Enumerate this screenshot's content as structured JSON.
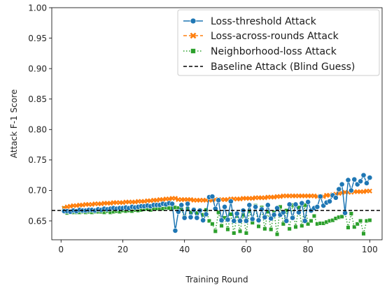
{
  "chart_data": {
    "type": "line",
    "xlabel": "Training Round",
    "ylabel": "Attack F-1 Score",
    "xlim": [
      -3,
      104
    ],
    "ylim": [
      0.619,
      1.0
    ],
    "xticks": [
      0,
      20,
      40,
      60,
      80,
      100
    ],
    "xtick_labels": [
      "0",
      "20",
      "40",
      "60",
      "80",
      "100"
    ],
    "yticks": [
      0.65,
      0.7,
      0.75,
      0.8,
      0.85,
      0.9,
      0.95,
      1.0
    ],
    "ytick_labels": [
      "0.65",
      "0.70",
      "0.75",
      "0.80",
      "0.85",
      "0.90",
      "0.95",
      "1.00"
    ],
    "legend_position": "top-right",
    "grid": false,
    "series": [
      {
        "name": "Loss-threshold Attack",
        "color": "#1f77b4",
        "marker": "circle",
        "line_style": "solid",
        "x": [
          1,
          2,
          3,
          4,
          5,
          6,
          7,
          8,
          9,
          10,
          11,
          12,
          13,
          14,
          15,
          16,
          17,
          18,
          19,
          20,
          21,
          22,
          23,
          24,
          25,
          26,
          27,
          28,
          29,
          30,
          31,
          32,
          33,
          34,
          35,
          36,
          37,
          38,
          39,
          40,
          41,
          42,
          43,
          44,
          45,
          46,
          47,
          48,
          49,
          50,
          51,
          52,
          53,
          54,
          55,
          56,
          57,
          58,
          59,
          60,
          61,
          62,
          63,
          64,
          65,
          66,
          67,
          68,
          69,
          70,
          71,
          72,
          73,
          74,
          75,
          76,
          77,
          78,
          79,
          80,
          81,
          82,
          83,
          84,
          85,
          86,
          87,
          88,
          89,
          90,
          91,
          92,
          93,
          94,
          95,
          96,
          97,
          98,
          99,
          100
        ],
        "y": [
          0.666,
          0.666,
          0.665,
          0.667,
          0.666,
          0.668,
          0.667,
          0.667,
          0.668,
          0.668,
          0.667,
          0.669,
          0.668,
          0.67,
          0.669,
          0.67,
          0.671,
          0.67,
          0.671,
          0.671,
          0.672,
          0.671,
          0.673,
          0.672,
          0.673,
          0.674,
          0.674,
          0.675,
          0.674,
          0.676,
          0.676,
          0.676,
          0.678,
          0.677,
          0.679,
          0.678,
          0.634,
          0.665,
          0.676,
          0.655,
          0.678,
          0.656,
          0.668,
          0.655,
          0.667,
          0.651,
          0.661,
          0.689,
          0.69,
          0.67,
          0.684,
          0.651,
          0.673,
          0.652,
          0.682,
          0.65,
          0.662,
          0.65,
          0.667,
          0.65,
          0.676,
          0.653,
          0.673,
          0.651,
          0.669,
          0.656,
          0.676,
          0.654,
          0.66,
          0.671,
          0.66,
          0.664,
          0.65,
          0.677,
          0.655,
          0.677,
          0.664,
          0.679,
          0.65,
          0.681,
          0.667,
          0.671,
          0.673,
          0.69,
          0.675,
          0.68,
          0.682,
          0.692,
          0.688,
          0.702,
          0.71,
          0.663,
          0.717,
          0.7,
          0.718,
          0.71,
          0.715,
          0.725,
          0.712,
          0.721
        ]
      },
      {
        "name": "Loss-across-rounds Attack",
        "color": "#ff7f0e",
        "marker": "x",
        "line_style": "dashed",
        "x": [
          1,
          2,
          3,
          4,
          5,
          6,
          7,
          8,
          9,
          10,
          11,
          12,
          13,
          14,
          15,
          16,
          17,
          18,
          19,
          20,
          21,
          22,
          23,
          24,
          25,
          26,
          27,
          28,
          29,
          30,
          31,
          32,
          33,
          34,
          35,
          36,
          37,
          38,
          39,
          40,
          41,
          42,
          43,
          44,
          45,
          46,
          47,
          48,
          49,
          50,
          51,
          52,
          53,
          54,
          55,
          56,
          57,
          58,
          59,
          60,
          61,
          62,
          63,
          64,
          65,
          66,
          67,
          68,
          69,
          70,
          71,
          72,
          73,
          74,
          75,
          76,
          77,
          78,
          79,
          80,
          81,
          82,
          83,
          84,
          85,
          86,
          87,
          88,
          89,
          90,
          91,
          92,
          93,
          94,
          95,
          96,
          97,
          98,
          99,
          100
        ],
        "y": [
          0.671,
          0.673,
          0.674,
          0.675,
          0.675,
          0.676,
          0.676,
          0.677,
          0.677,
          0.677,
          0.678,
          0.678,
          0.678,
          0.679,
          0.679,
          0.679,
          0.68,
          0.68,
          0.68,
          0.68,
          0.681,
          0.681,
          0.681,
          0.681,
          0.682,
          0.682,
          0.682,
          0.683,
          0.683,
          0.684,
          0.684,
          0.685,
          0.685,
          0.686,
          0.686,
          0.687,
          0.687,
          0.685,
          0.685,
          0.685,
          0.685,
          0.685,
          0.684,
          0.684,
          0.684,
          0.684,
          0.684,
          0.684,
          0.684,
          0.685,
          0.685,
          0.685,
          0.685,
          0.685,
          0.686,
          0.686,
          0.686,
          0.686,
          0.687,
          0.687,
          0.687,
          0.687,
          0.688,
          0.688,
          0.688,
          0.688,
          0.689,
          0.689,
          0.689,
          0.69,
          0.69,
          0.691,
          0.691,
          0.691,
          0.691,
          0.691,
          0.691,
          0.691,
          0.691,
          0.691,
          0.691,
          0.691,
          0.69,
          0.69,
          0.69,
          0.692,
          0.692,
          0.693,
          0.694,
          0.695,
          0.696,
          0.697,
          0.697,
          0.697,
          0.698,
          0.698,
          0.698,
          0.698,
          0.699,
          0.699
        ]
      },
      {
        "name": "Neighborhood-loss Attack",
        "color": "#2ca02c",
        "marker": "square",
        "line_style": "dotted",
        "x": [
          1,
          2,
          3,
          4,
          5,
          6,
          7,
          8,
          9,
          10,
          11,
          12,
          13,
          14,
          15,
          16,
          17,
          18,
          19,
          20,
          21,
          22,
          23,
          24,
          25,
          26,
          27,
          28,
          29,
          30,
          31,
          32,
          33,
          34,
          35,
          36,
          37,
          38,
          39,
          40,
          41,
          42,
          43,
          44,
          45,
          46,
          47,
          48,
          49,
          50,
          51,
          52,
          53,
          54,
          55,
          56,
          57,
          58,
          59,
          60,
          61,
          62,
          63,
          64,
          65,
          66,
          67,
          68,
          69,
          70,
          71,
          72,
          73,
          74,
          75,
          76,
          77,
          78,
          79,
          80,
          81,
          82,
          83,
          84,
          85,
          86,
          87,
          88,
          89,
          90,
          91,
          92,
          93,
          94,
          95,
          96,
          97,
          98,
          99,
          100
        ],
        "y": [
          0.671,
          0.663,
          0.664,
          0.664,
          0.664,
          0.664,
          0.665,
          0.664,
          0.665,
          0.664,
          0.665,
          0.665,
          0.665,
          0.664,
          0.666,
          0.664,
          0.665,
          0.666,
          0.665,
          0.667,
          0.666,
          0.667,
          0.666,
          0.668,
          0.667,
          0.668,
          0.669,
          0.67,
          0.668,
          0.671,
          0.67,
          0.671,
          0.67,
          0.672,
          0.671,
          0.671,
          0.672,
          0.671,
          0.669,
          0.657,
          0.67,
          0.664,
          0.669,
          0.663,
          0.668,
          0.66,
          0.668,
          0.65,
          0.645,
          0.633,
          0.664,
          0.642,
          0.655,
          0.636,
          0.661,
          0.63,
          0.658,
          0.633,
          0.66,
          0.63,
          0.666,
          0.647,
          0.675,
          0.641,
          0.672,
          0.637,
          0.665,
          0.636,
          0.664,
          0.628,
          0.673,
          0.645,
          0.667,
          0.637,
          0.676,
          0.64,
          0.672,
          0.642,
          0.676,
          0.645,
          0.65,
          0.658,
          0.645,
          0.646,
          0.646,
          0.648,
          0.65,
          0.651,
          0.654,
          0.656,
          0.657,
          0.663,
          0.639,
          0.662,
          0.64,
          0.645,
          0.65,
          0.629,
          0.65,
          0.651
        ]
      },
      {
        "name": "Baseline Attack (Blind Guess)",
        "color": "#000000",
        "marker": "none",
        "line_style": "dashed",
        "x": [
          -3,
          104
        ],
        "y": [
          0.667,
          0.667
        ]
      }
    ]
  }
}
